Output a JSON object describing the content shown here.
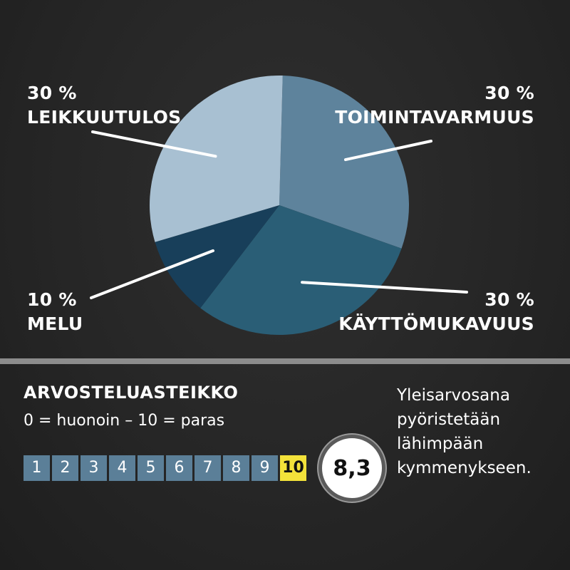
{
  "chart_data": {
    "type": "pie",
    "slices": [
      {
        "label": "TOIMINTAVARMUUS",
        "value_label": "30 %",
        "value": 30,
        "color": "#5e839c"
      },
      {
        "label": "KÄYTTÖMUKAVUUS",
        "value_label": "30 %",
        "value": 30,
        "color": "#2a5e76"
      },
      {
        "label": "MELU",
        "value_label": "10 %",
        "value": 10,
        "color": "#183f5a"
      },
      {
        "label": "LEIKKUUTULOS",
        "value_label": "30 %",
        "value": 30,
        "color": "#a8c0d2"
      }
    ]
  },
  "scale": {
    "title": "ARVOSTELUASTEIKKO",
    "subtitle": "0 = huonoin – 10 = paras",
    "numbers": [
      "1",
      "2",
      "3",
      "4",
      "5",
      "6",
      "7",
      "8",
      "9",
      "10"
    ],
    "highlight_color": "#f3e23a",
    "cell_color": "#5b7f98"
  },
  "score": "8,3",
  "note": {
    "lines": [
      "Yleisarvosana",
      "pyöristetään",
      "lähimpään",
      "kymmenykseen."
    ]
  }
}
